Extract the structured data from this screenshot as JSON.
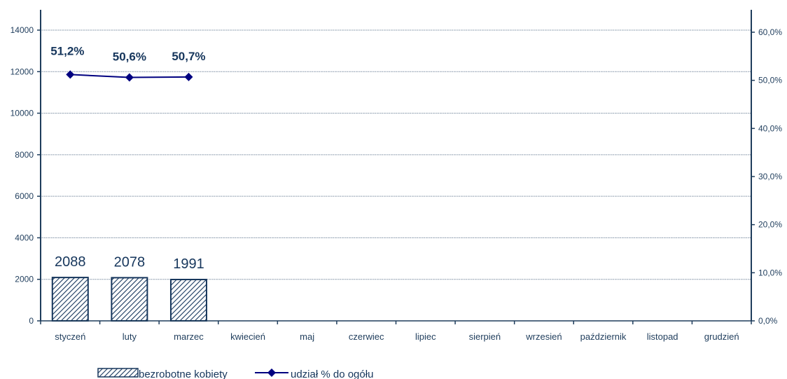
{
  "chart_data": {
    "type": "bar",
    "categories": [
      "styczeń",
      "luty",
      "marzec",
      "kwiecień",
      "maj",
      "czerwiec",
      "lipiec",
      "sierpień",
      "wrzesień",
      "październik",
      "listopad",
      "grudzień"
    ],
    "series": [
      {
        "name": "bezrobotne kobiety",
        "type": "bar",
        "axis": "left",
        "values": [
          2088,
          2078,
          1991,
          null,
          null,
          null,
          null,
          null,
          null,
          null,
          null,
          null
        ],
        "labels": [
          "2088",
          "2078",
          "1991"
        ]
      },
      {
        "name": "udział % do ogółu",
        "type": "line",
        "axis": "right",
        "values": [
          51.2,
          50.6,
          50.7,
          null,
          null,
          null,
          null,
          null,
          null,
          null,
          null,
          null
        ],
        "labels": [
          "51,2%",
          "50,6%",
          "50,7%"
        ]
      }
    ],
    "y_left": {
      "min": 0,
      "max": 14000,
      "ticks": [
        0,
        2000,
        4000,
        6000,
        8000,
        10000,
        12000,
        14000
      ],
      "tick_labels": [
        "0",
        "2000",
        "4000",
        "6000",
        "8000",
        "10000",
        "12000",
        "14000"
      ]
    },
    "y_right": {
      "min": 0,
      "max": 60,
      "ticks": [
        0,
        10,
        20,
        30,
        40,
        50,
        60
      ],
      "tick_labels": [
        "0,0%",
        "10,0%",
        "20,0%",
        "30,0%",
        "40,0%",
        "50,0%",
        "60,0%"
      ]
    },
    "grid": true,
    "legend_position": "bottom",
    "colors": {
      "axis": "#1f3d5c",
      "bar_edge": "#16365c",
      "bar_hatch": "#16365c",
      "line": "#000080",
      "grid": "#7a8ca0"
    }
  }
}
